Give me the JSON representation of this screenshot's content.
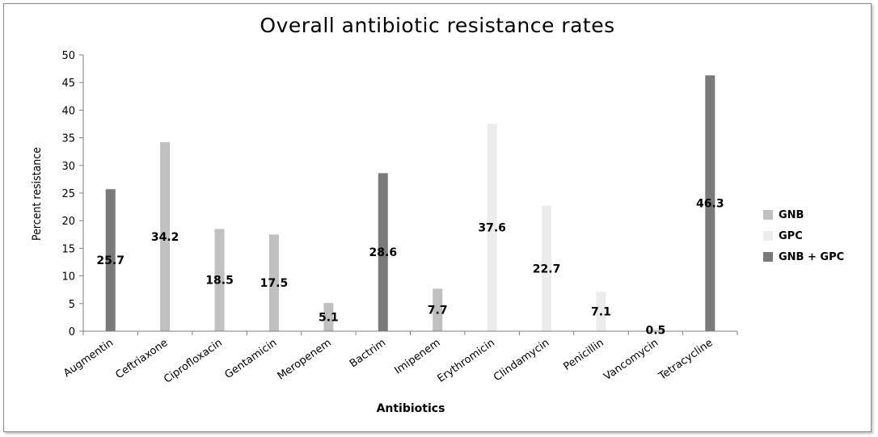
{
  "chart_data": {
    "type": "bar",
    "title": "Overall antibiotic resistance rates",
    "xlabel": "Antibiotics",
    "ylabel": "Percent resistance",
    "ylim": [
      0,
      50
    ],
    "yticks": [
      0,
      5,
      10,
      15,
      20,
      25,
      30,
      35,
      40,
      45,
      50
    ],
    "grid": false,
    "legend_position": "right",
    "categories": [
      "Augmentin",
      "Ceftriaxone",
      "Ciprofloxacin",
      "Gentamicin",
      "Meropenem",
      "Bactrim",
      "Imipenem",
      "Erythromicin",
      "Clindamycin",
      "Penicillin",
      "Vancomycin",
      "Tetracycline"
    ],
    "series": [
      {
        "name": "GNB",
        "color": "#c0c0c0",
        "values": [
          null,
          34.2,
          18.5,
          17.5,
          5.1,
          null,
          7.7,
          null,
          null,
          null,
          null,
          null
        ]
      },
      {
        "name": "GPC",
        "color": "#ececec",
        "values": [
          null,
          null,
          null,
          null,
          null,
          null,
          null,
          37.6,
          22.7,
          7.1,
          0.5,
          null
        ]
      },
      {
        "name": "GNB + GPC",
        "color": "#7a7a7a",
        "values": [
          25.7,
          null,
          null,
          null,
          null,
          28.6,
          null,
          null,
          null,
          null,
          null,
          46.3
        ]
      }
    ],
    "data_labels": [
      "25.7",
      "34.2",
      "18.5",
      "17.5",
      "5.1",
      "28.6",
      "7.7",
      "37.6",
      "22.7",
      "7.1",
      "0.5",
      "46.3"
    ]
  }
}
